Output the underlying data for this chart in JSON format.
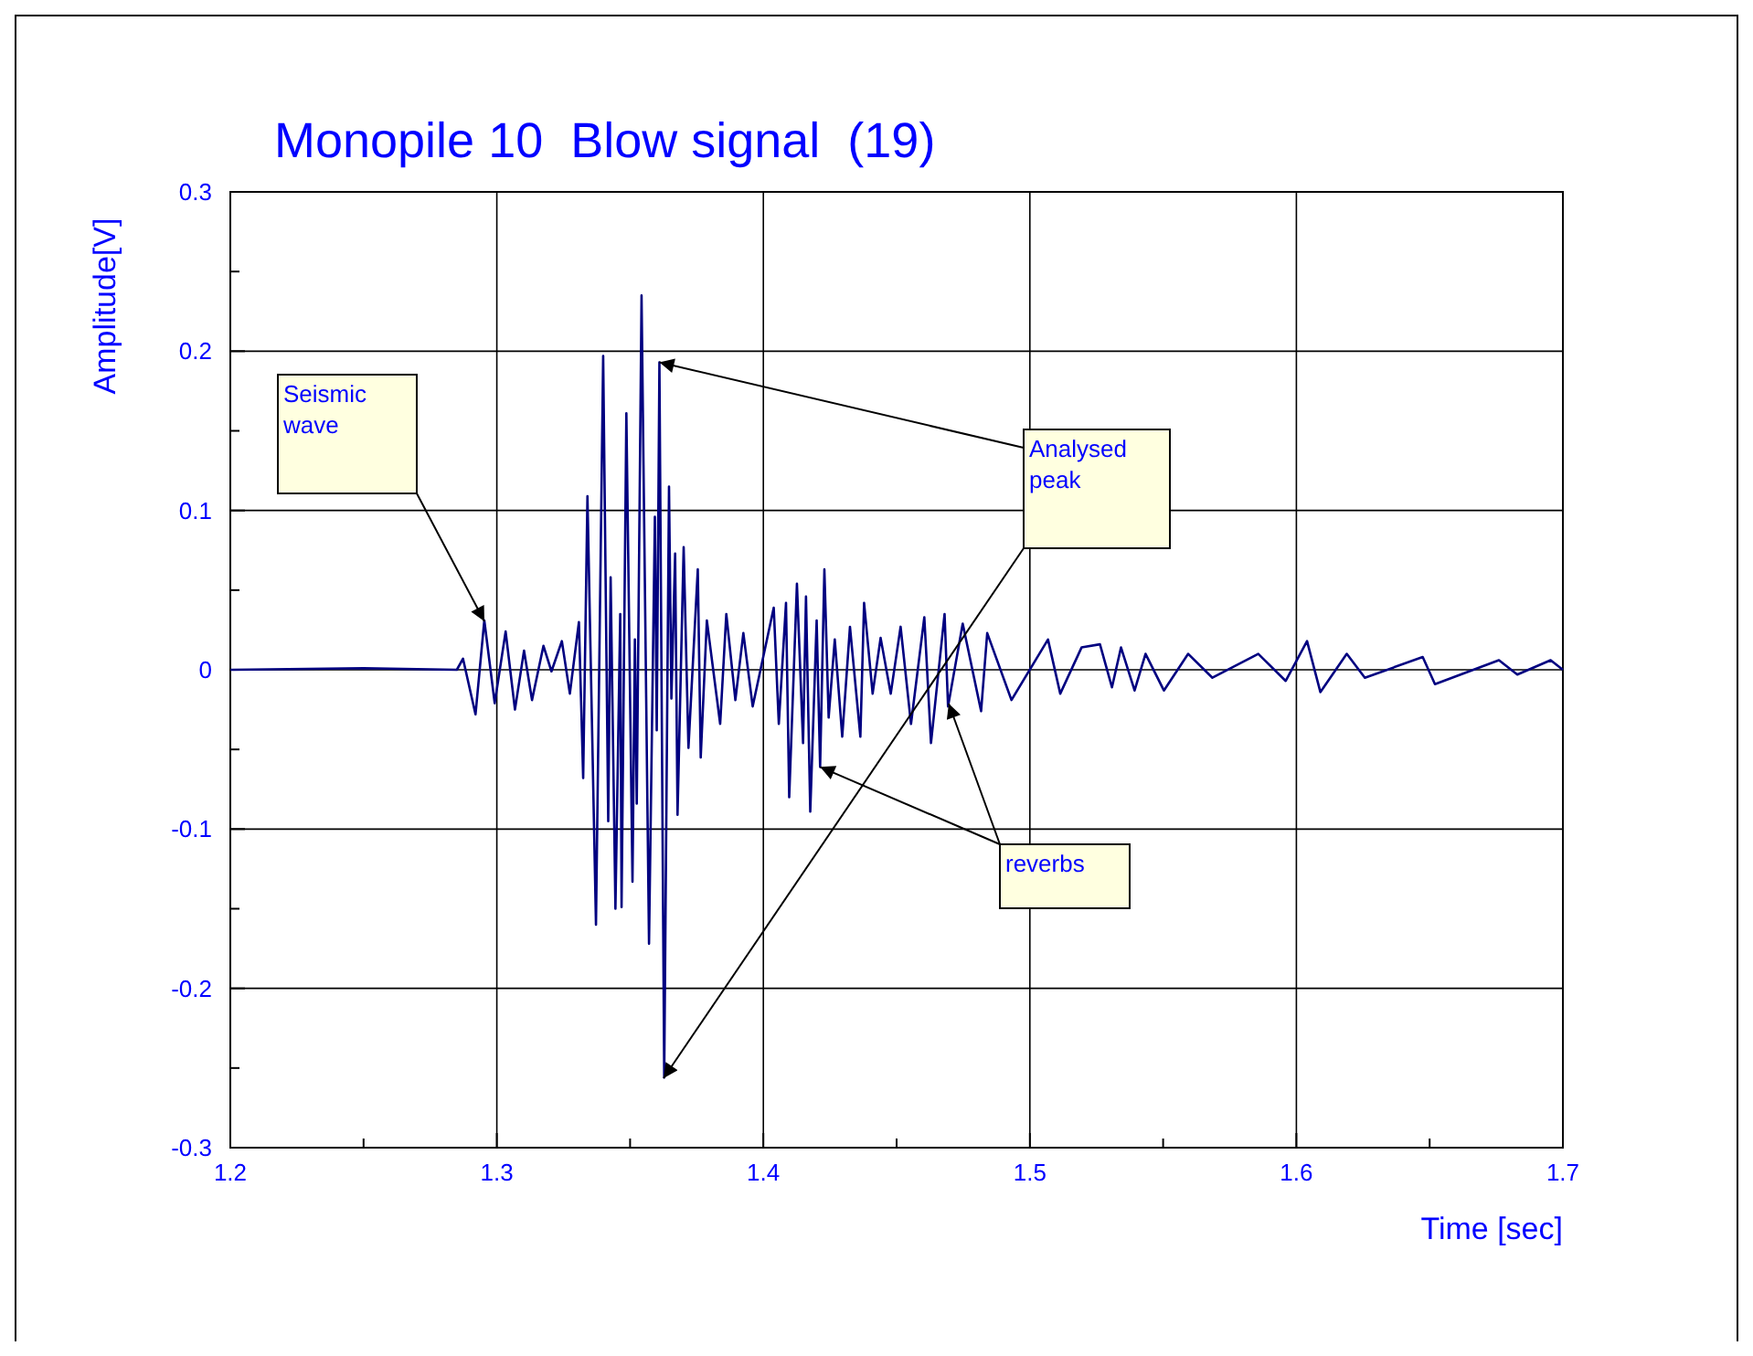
{
  "chart_data": {
    "type": "line",
    "title": "Monopile 10  Blow signal  (19)",
    "xlabel": "Time [sec]",
    "ylabel": "Amplitude[V]",
    "xlim": [
      1.2,
      1.7
    ],
    "ylim": [
      -0.3,
      0.3
    ],
    "xticks": [
      1.2,
      {
        "value": 1.25,
        "label": null
      },
      1.3,
      {
        "value": 1.35,
        "label": null
      },
      1.4,
      {
        "value": 1.45,
        "label": null
      },
      1.5,
      {
        "value": 1.55,
        "label": null
      },
      1.6,
      {
        "value": 1.65,
        "label": null
      },
      1.7
    ],
    "yticks": [
      -0.3,
      {
        "value": -0.25,
        "label": null
      },
      -0.2,
      {
        "value": -0.15,
        "label": null
      },
      -0.1,
      {
        "value": -0.05,
        "label": null
      },
      0,
      {
        "value": 0.05,
        "label": null
      },
      0.1,
      {
        "value": 0.15,
        "label": null
      },
      0.2,
      {
        "value": 0.25,
        "label": null
      },
      0.3
    ],
    "grid": true,
    "marker": "none",
    "line_style": "solid",
    "x": [
      1.2,
      1.25,
      1.285,
      1.2873,
      1.292,
      1.2953,
      1.2992,
      1.3033,
      1.3068,
      1.3102,
      1.3132,
      1.3175,
      1.3205,
      1.3244,
      1.3274,
      1.3308,
      1.3324,
      1.334,
      1.3372,
      1.3399,
      1.3418,
      1.3427,
      1.3445,
      1.3463,
      1.3468,
      1.3486,
      1.3509,
      1.3518,
      1.3525,
      1.3543,
      1.3571,
      1.3593,
      1.36,
      1.361,
      1.3628,
      1.3646,
      1.3655,
      1.3669,
      1.3678,
      1.3701,
      1.3719,
      1.3754,
      1.3765,
      1.3788,
      1.3838,
      1.3861,
      1.3895,
      1.3925,
      1.396,
      1.4039,
      1.4058,
      1.4085,
      1.4097,
      1.4126,
      1.4149,
      1.416,
      1.4176,
      1.42,
      1.4213,
      1.4229,
      1.4245,
      1.4268,
      1.4296,
      1.4325,
      1.4364,
      1.4378,
      1.441,
      1.444,
      1.4478,
      1.4515,
      1.4554,
      1.4604,
      1.4629,
      1.468,
      1.4693,
      1.4748,
      1.4817,
      1.484,
      1.4931,
      1.5068,
      1.5114,
      1.5194,
      1.5263,
      1.5308,
      1.5342,
      1.5393,
      1.5434,
      1.5503,
      1.5594,
      1.5685,
      1.5857,
      1.596,
      1.604,
      1.609,
      1.6189,
      1.6257,
      1.6474,
      1.652,
      1.676,
      1.6829,
      1.6954,
      1.7
    ],
    "series": [
      {
        "color": "#000080",
        "values": [
          0,
          0.001,
          0,
          0.007,
          -0.028,
          0.031,
          -0.021,
          0.024,
          -0.025,
          0.012,
          -0.019,
          0.015,
          -0.001,
          0.018,
          -0.015,
          0.03,
          -0.068,
          0.109,
          -0.16,
          0.197,
          -0.095,
          0.058,
          -0.15,
          0.035,
          -0.149,
          0.161,
          -0.133,
          0.019,
          -0.084,
          0.235,
          -0.172,
          0.096,
          -0.038,
          0.193,
          -0.256,
          0.115,
          -0.018,
          0.073,
          -0.091,
          0.077,
          -0.049,
          0.063,
          -0.055,
          0.031,
          -0.034,
          0.035,
          -0.019,
          0.023,
          -0.023,
          0.039,
          -0.034,
          0.042,
          -0.08,
          0.054,
          -0.046,
          0.046,
          -0.089,
          0.031,
          -0.061,
          0.063,
          -0.03,
          0.019,
          -0.042,
          0.027,
          -0.042,
          0.042,
          -0.015,
          0.02,
          -0.015,
          0.027,
          -0.034,
          0.033,
          -0.046,
          0.035,
          -0.023,
          0.029,
          -0.026,
          0.023,
          -0.019,
          0.019,
          -0.015,
          0.014,
          0.016,
          -0.011,
          0.014,
          -0.013,
          0.01,
          -0.013,
          0.01,
          -0.005,
          0.01,
          -0.007,
          0.018,
          -0.014,
          0.01,
          -0.005,
          0.008,
          -0.009,
          0.006,
          -0.003,
          0.006,
          0
        ]
      }
    ],
    "annotations": [
      "Seismic wave",
      {
        "text": "Analysed peak",
        "x": 1.361,
        "y": 0.193
      },
      {
        "text": "reverbs",
        "x": 1.4213,
        "y": -0.061
      }
    ]
  }
}
